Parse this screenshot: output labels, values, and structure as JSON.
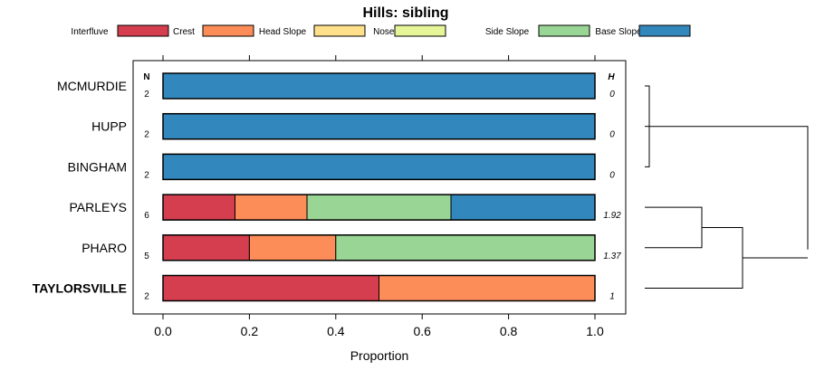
{
  "chart_data": {
    "type": "bar",
    "orientation": "horizontal",
    "stacked": true,
    "title": "Hills: sibling",
    "xlabel": "Proportion",
    "xlim": [
      0,
      1
    ],
    "xticks": [
      "0.0",
      "0.2",
      "0.4",
      "0.6",
      "0.8",
      "1.0"
    ],
    "xtick_values": [
      0,
      0.2,
      0.4,
      0.6,
      0.8,
      1.0
    ],
    "n_header": "N",
    "h_header": "H",
    "legend": [
      {
        "name": "Interfluve",
        "color": "#d53e4f"
      },
      {
        "name": "Crest",
        "color": "#fc8d59"
      },
      {
        "name": "Head Slope",
        "color": "#fee08b"
      },
      {
        "name": "Nose Slope",
        "color": "#e6f598"
      },
      {
        "name": "Side Slope",
        "color": "#99d594"
      },
      {
        "name": "Base Slope",
        "color": "#3288bd"
      }
    ],
    "rows": [
      {
        "label": "MCMURDIE",
        "bold": false,
        "n": "2",
        "h": "0",
        "values": [
          0,
          0,
          0,
          0,
          0,
          1
        ]
      },
      {
        "label": "HUPP",
        "bold": false,
        "n": "2",
        "h": "0",
        "values": [
          0,
          0,
          0,
          0,
          0,
          1
        ]
      },
      {
        "label": "BINGHAM",
        "bold": false,
        "n": "2",
        "h": "0",
        "values": [
          0,
          0,
          0,
          0,
          0,
          1
        ]
      },
      {
        "label": "PARLEYS",
        "bold": false,
        "n": "6",
        "h": "1.92",
        "values": [
          0.1667,
          0.1667,
          0,
          0,
          0.3333,
          0.3333
        ]
      },
      {
        "label": "PHARO",
        "bold": false,
        "n": "5",
        "h": "1.37",
        "values": [
          0.2,
          0.2,
          0,
          0,
          0.6,
          0
        ]
      },
      {
        "label": "TAYLORSVILLE",
        "bold": true,
        "n": "2",
        "h": "1",
        "values": [
          0.5,
          0.5,
          0,
          0,
          0,
          0
        ]
      }
    ]
  }
}
